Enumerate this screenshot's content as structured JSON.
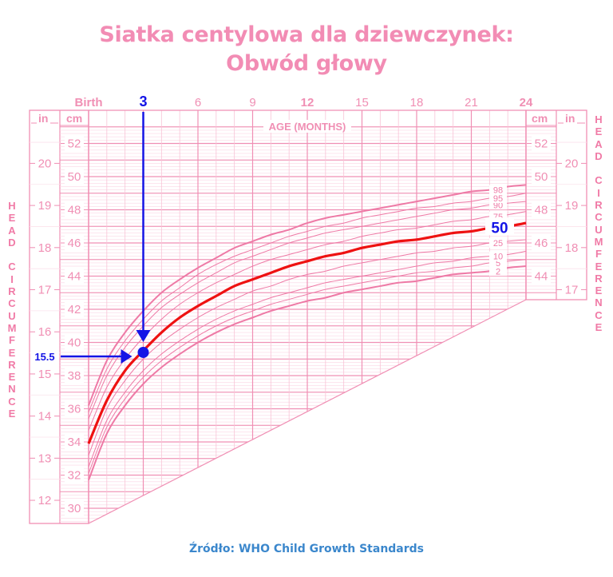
{
  "title": {
    "line1": "Siatka centylowa dla dziewczynek:",
    "line2": "Obwód głowy"
  },
  "source": "Źródło: WHO Child Growth Standards",
  "axis": {
    "x_label": "AGE (MONTHS)",
    "x_ticks": [
      "Birth",
      "3",
      "6",
      "9",
      "12",
      "15",
      "18",
      "21",
      "24"
    ],
    "x_bold_ticks": [
      "Birth",
      "3",
      "12",
      "24"
    ],
    "cm_header": "cm",
    "in_header": "in",
    "cm_ticks": [
      52,
      50,
      48,
      46,
      44,
      42,
      40,
      38,
      36,
      34,
      32,
      30
    ],
    "cm_ticks_right": [
      52,
      50,
      48,
      46,
      44
    ],
    "in_ticks": [
      20,
      19,
      18,
      17,
      16,
      15,
      14,
      13,
      12
    ],
    "in_ticks_right": [
      20,
      19,
      18,
      17
    ],
    "side_label": "HEAD CIRCUMFERENCE"
  },
  "annotation": {
    "month_marker": "3",
    "value_marker": "15.5",
    "highlight_percentile": "50"
  },
  "colors": {
    "grid": "#f08fb4",
    "grid_light": "#fbd6e4",
    "curve": "#ee7aa6",
    "median": "#ee1111",
    "annotation": "#1414e6",
    "title": "#f28cb4",
    "source": "#3b87cc"
  },
  "chart_data": {
    "type": "line",
    "title": "Siatka centylowa dla dziewczynek: Obwód głowy",
    "xlabel": "AGE (MONTHS)",
    "ylabel": "HEAD CIRCUMFERENCE (cm / in)",
    "xlim": [
      0,
      24
    ],
    "ylim": [
      29,
      53
    ],
    "x": [
      0,
      1,
      2,
      3,
      4,
      5,
      6,
      7,
      8,
      9,
      10,
      11,
      12,
      13,
      14,
      15,
      16,
      17,
      18,
      19,
      20,
      21,
      22,
      23,
      24
    ],
    "series": [
      {
        "name": "2",
        "values": [
          31.7,
          34.5,
          36.2,
          37.5,
          38.5,
          39.3,
          40.0,
          40.6,
          41.1,
          41.5,
          41.9,
          42.2,
          42.5,
          42.7,
          43.0,
          43.2,
          43.4,
          43.6,
          43.7,
          43.9,
          44.1,
          44.2,
          44.3,
          44.5,
          44.6
        ]
      },
      {
        "name": "5",
        "values": [
          32.1,
          34.9,
          36.6,
          37.9,
          38.9,
          39.7,
          40.4,
          41.0,
          41.5,
          41.9,
          42.3,
          42.6,
          42.9,
          43.2,
          43.4,
          43.6,
          43.8,
          44.0,
          44.2,
          44.3,
          44.5,
          44.6,
          44.8,
          44.9,
          45.0
        ]
      },
      {
        "name": "10",
        "values": [
          32.5,
          35.3,
          37.0,
          38.3,
          39.3,
          40.1,
          40.8,
          41.4,
          41.9,
          42.3,
          42.7,
          43.0,
          43.3,
          43.6,
          43.8,
          44.0,
          44.2,
          44.4,
          44.6,
          44.8,
          44.9,
          45.1,
          45.2,
          45.3,
          45.5
        ]
      },
      {
        "name": "25",
        "values": [
          33.2,
          36.0,
          37.7,
          39.0,
          40.0,
          40.8,
          41.5,
          42.1,
          42.6,
          43.1,
          43.4,
          43.8,
          44.1,
          44.3,
          44.6,
          44.8,
          45.0,
          45.2,
          45.4,
          45.5,
          45.7,
          45.8,
          46.0,
          46.1,
          46.2
        ]
      },
      {
        "name": "50",
        "values": [
          33.9,
          36.5,
          38.3,
          39.5,
          40.6,
          41.5,
          42.2,
          42.8,
          43.4,
          43.8,
          44.2,
          44.6,
          44.9,
          45.2,
          45.4,
          45.7,
          45.9,
          46.1,
          46.2,
          46.4,
          46.6,
          46.7,
          46.9,
          47.0,
          47.2
        ]
      },
      {
        "name": "75",
        "values": [
          34.7,
          37.3,
          39.0,
          40.3,
          41.4,
          42.3,
          43.0,
          43.6,
          44.1,
          44.6,
          45.0,
          45.3,
          45.6,
          45.9,
          46.1,
          46.4,
          46.6,
          46.8,
          46.9,
          47.1,
          47.3,
          47.4,
          47.6,
          47.7,
          47.9
        ]
      },
      {
        "name": "90",
        "values": [
          35.4,
          38.0,
          39.7,
          41.0,
          42.1,
          42.9,
          43.6,
          44.2,
          44.8,
          45.2,
          45.6,
          46.0,
          46.3,
          46.6,
          46.8,
          47.0,
          47.2,
          47.4,
          47.6,
          47.8,
          48.0,
          48.1,
          48.3,
          48.4,
          48.5
        ]
      },
      {
        "name": "95",
        "values": [
          35.8,
          38.4,
          40.1,
          41.4,
          42.5,
          43.3,
          44.1,
          44.7,
          45.2,
          45.6,
          46.0,
          46.4,
          46.7,
          47.0,
          47.2,
          47.5,
          47.7,
          47.9,
          48.1,
          48.2,
          48.4,
          48.5,
          48.7,
          48.8,
          49.0
        ]
      },
      {
        "name": "98",
        "values": [
          36.2,
          38.9,
          40.6,
          41.9,
          43.0,
          43.8,
          44.5,
          45.1,
          45.7,
          46.1,
          46.5,
          46.8,
          47.2,
          47.5,
          47.7,
          47.9,
          48.1,
          48.3,
          48.5,
          48.7,
          48.9,
          49.1,
          49.2,
          49.4,
          49.5
        ]
      }
    ],
    "annotation_point": {
      "x": 3,
      "y_cm": 39.4,
      "y_in": 15.5,
      "percentile": "50"
    },
    "grid": true,
    "legend_position": "inline-right"
  }
}
